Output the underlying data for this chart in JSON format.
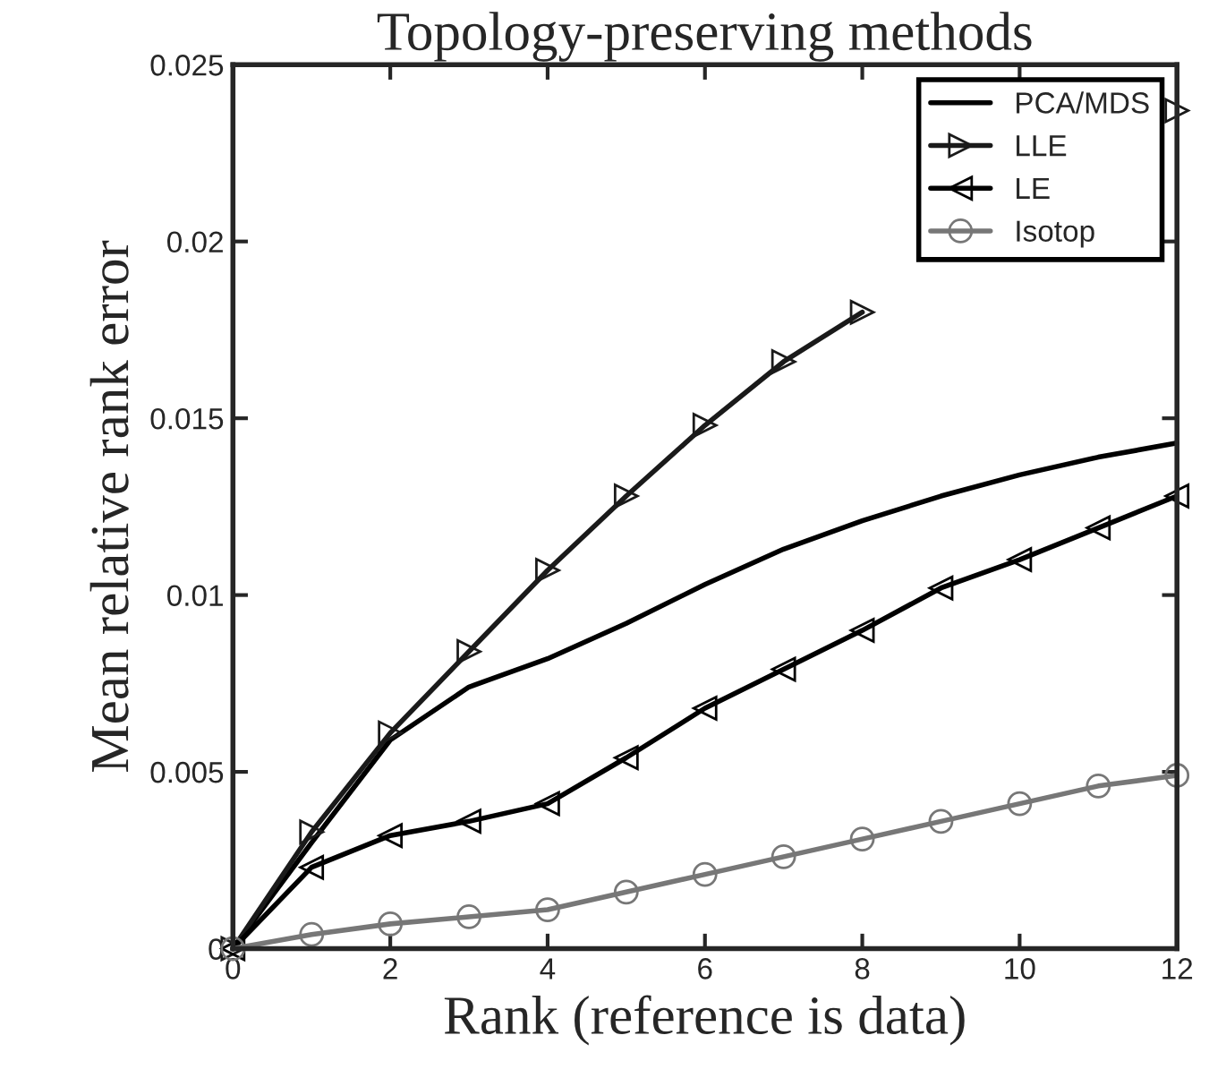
{
  "chart_data": {
    "type": "line",
    "title": "Topology-preserving methods",
    "xlabel": "Rank (reference is data)",
    "ylabel": "Mean relative rank error",
    "x": [
      0,
      1,
      2,
      3,
      4,
      5,
      6,
      7,
      8,
      9,
      10,
      11,
      12
    ],
    "series": [
      {
        "name": "PCA/MDS",
        "color": "#000000",
        "marker": "none",
        "values": [
          0,
          0.003,
          0.0059,
          0.0074,
          0.0082,
          0.0092,
          0.0103,
          0.0113,
          0.0121,
          0.0128,
          0.0134,
          0.0139,
          0.0143
        ]
      },
      {
        "name": "LLE",
        "color": "#1a1a1a",
        "marker": "triangle_right",
        "values": [
          0,
          0.0033,
          0.0061,
          0.0084,
          0.0107,
          0.0128,
          0.0148,
          0.0166,
          0.018,
          null,
          null,
          null,
          0.0237
        ]
      },
      {
        "name": "LE",
        "color": "#000000",
        "marker": "triangle_left",
        "values": [
          0,
          0.0023,
          0.0032,
          0.0036,
          0.0041,
          0.0054,
          0.0068,
          0.0079,
          0.009,
          0.0102,
          0.011,
          0.0119,
          0.0128
        ]
      },
      {
        "name": "Isotop",
        "color": "#777777",
        "marker": "circle",
        "values": [
          0,
          0.0004,
          0.0007,
          0.0009,
          0.0011,
          0.0016,
          0.0021,
          0.0026,
          0.0031,
          0.0036,
          0.0041,
          0.0046,
          0.0049
        ]
      }
    ],
    "xlim": [
      0,
      12
    ],
    "xticks": [
      0,
      2,
      4,
      6,
      8,
      10,
      12
    ],
    "ylim": [
      0,
      0.025
    ],
    "yticks": [
      0,
      0.005,
      0.01,
      0.015,
      0.02,
      0.025
    ],
    "legend": "top right",
    "grid": false
  }
}
